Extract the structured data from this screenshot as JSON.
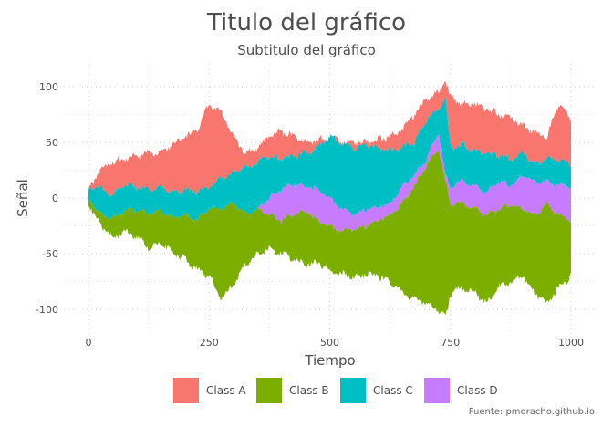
{
  "chart_data": {
    "type": "area",
    "title": "Titulo del gráfico",
    "subtitle": "Subtitulo del gráfico",
    "caption": "Fuente: pmoracho.github.io",
    "xlabel": "Tiempo",
    "ylabel": "Señal",
    "xlim": [
      0,
      1000
    ],
    "ylim": [
      -110,
      110
    ],
    "x_ticks": [
      "0",
      "250",
      "500",
      "750",
      "1000"
    ],
    "y_ticks": [
      "100",
      "50",
      "0",
      "-50",
      "-100"
    ],
    "grid": "dotted",
    "legend_position": "bottom",
    "stacking": "cumulative (A and C/D stacked upward, B downward)",
    "colors": {
      "Class A": "#F8766D",
      "Class B": "#7CAE00",
      "Class C": "#00BFC4",
      "Class D": "#C77CFF"
    },
    "x": [
      0,
      25,
      50,
      75,
      100,
      125,
      150,
      175,
      200,
      225,
      250,
      275,
      300,
      325,
      350,
      375,
      400,
      425,
      450,
      475,
      500,
      525,
      550,
      575,
      600,
      625,
      650,
      675,
      700,
      725,
      740,
      750,
      775,
      800,
      825,
      850,
      875,
      900,
      925,
      950,
      975,
      1000
    ],
    "top_boundaries": {
      "Class A": [
        8,
        25,
        32,
        35,
        38,
        40,
        42,
        48,
        55,
        60,
        85,
        78,
        55,
        40,
        45,
        55,
        60,
        55,
        50,
        52,
        55,
        50,
        50,
        50,
        52,
        55,
        62,
        75,
        88,
        95,
        105,
        90,
        85,
        85,
        80,
        75,
        72,
        65,
        60,
        55,
        85,
        70
      ],
      "Class C": [
        8,
        10,
        2,
        12,
        10,
        8,
        10,
        5,
        8,
        5,
        10,
        18,
        22,
        28,
        32,
        38,
        35,
        38,
        40,
        45,
        55,
        50,
        45,
        48,
        45,
        42,
        45,
        50,
        70,
        80,
        90,
        45,
        48,
        42,
        40,
        38,
        35,
        40,
        30,
        35,
        35,
        30
      ],
      "Class D": [
        0,
        -15,
        -18,
        -12,
        -10,
        -15,
        -12,
        -18,
        -15,
        -20,
        -8,
        -10,
        -5,
        -15,
        -10,
        0,
        8,
        12,
        10,
        8,
        0,
        -10,
        -15,
        -10,
        -8,
        -5,
        10,
        20,
        35,
        60,
        20,
        10,
        15,
        10,
        5,
        15,
        12,
        20,
        15,
        15,
        12,
        10
      ],
      "Class B": [
        0,
        -15,
        -18,
        -12,
        -10,
        -15,
        -12,
        -18,
        -15,
        -20,
        -8,
        -10,
        -5,
        -15,
        -10,
        -15,
        -20,
        -15,
        -12,
        -20,
        -25,
        -30,
        -28,
        -25,
        -20,
        -15,
        -5,
        10,
        30,
        45,
        15,
        -5,
        -5,
        -10,
        -15,
        -10,
        -5,
        -10,
        -15,
        -5,
        -15,
        -20
      ]
    },
    "bottom_boundary": [
      -5,
      -25,
      -35,
      -30,
      -35,
      -45,
      -40,
      -50,
      -55,
      -65,
      -70,
      -90,
      -78,
      -60,
      -50,
      -45,
      -50,
      -55,
      -60,
      -58,
      -65,
      -68,
      -72,
      -68,
      -70,
      -75,
      -85,
      -90,
      -95,
      -100,
      -108,
      -85,
      -80,
      -85,
      -95,
      -80,
      -75,
      -70,
      -85,
      -95,
      -80,
      -70
    ]
  },
  "legend": [
    {
      "label": "Class A",
      "color": "#F8766D"
    },
    {
      "label": "Class B",
      "color": "#7CAE00"
    },
    {
      "label": "Class C",
      "color": "#00BFC4"
    },
    {
      "label": "Class D",
      "color": "#C77CFF"
    }
  ]
}
